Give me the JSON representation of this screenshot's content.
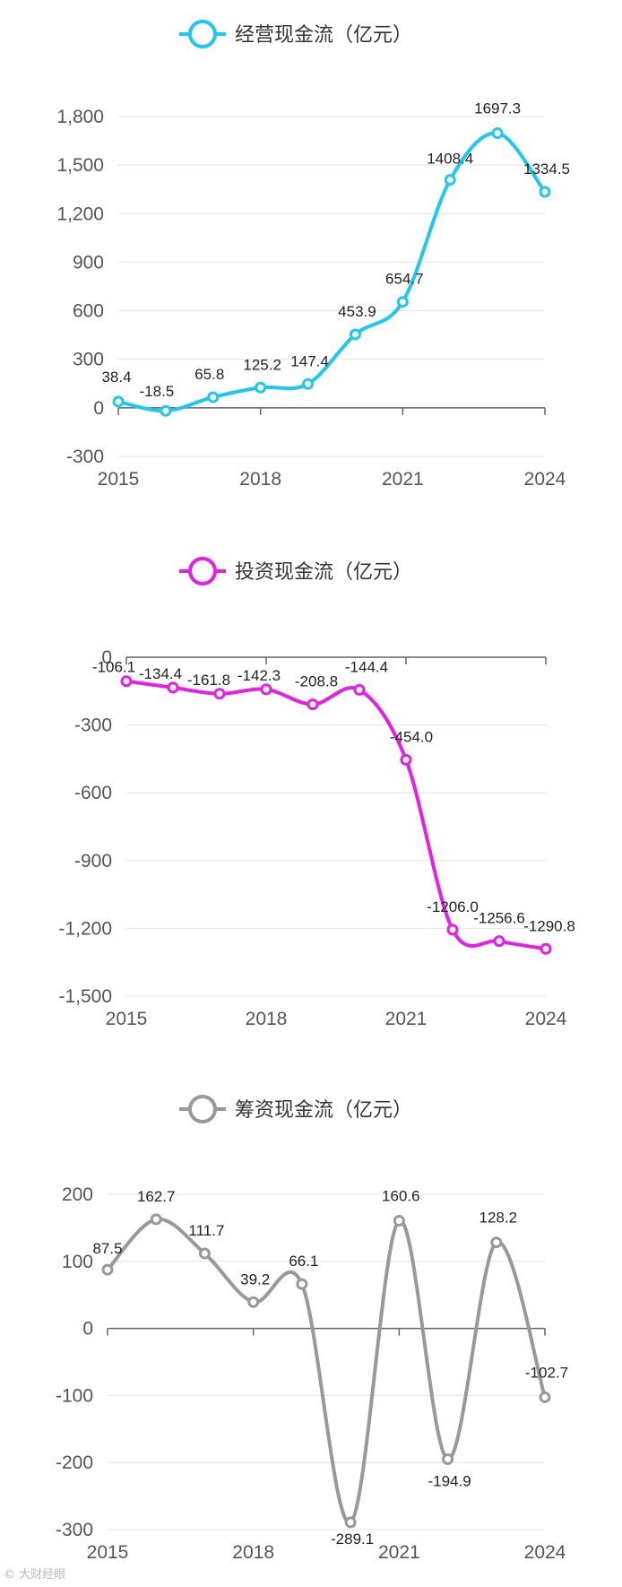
{
  "chart_data": [
    {
      "type": "line",
      "legend": "经营现金流（亿元）",
      "color": "#1ec8f0",
      "x": [
        "2015",
        "2016",
        "2017",
        "2018",
        "2019",
        "2020",
        "2021",
        "2022",
        "2023",
        "2024"
      ],
      "xtick_labels": [
        "2015",
        "2018",
        "2021",
        "2024"
      ],
      "values": [
        38.4,
        -18.5,
        65.8,
        125.2,
        147.4,
        453.9,
        654.7,
        1408.4,
        1697.3,
        1334.5
      ],
      "value_labels": [
        "38.4",
        "-18.5",
        "65.8",
        "125.2",
        "147.4",
        "453.9",
        "654.7",
        "1408.4",
        "1697.3",
        "1334.5"
      ],
      "ylim": [
        -300,
        1800
      ],
      "yticks": [
        -300,
        0,
        300,
        600,
        900,
        1200,
        1500,
        1800
      ],
      "ytick_labels": [
        "-300",
        "0",
        "300",
        "600",
        "900",
        "1,200",
        "1,500",
        "1,800"
      ],
      "zero_axis": 0,
      "grid": true,
      "legend_position": "top-center"
    },
    {
      "type": "line",
      "legend": "投资现金流（亿元）",
      "color": "#e61ee6",
      "x": [
        "2015",
        "2016",
        "2017",
        "2018",
        "2019",
        "2020",
        "2021",
        "2022",
        "2023",
        "2024"
      ],
      "xtick_labels": [
        "2015",
        "2018",
        "2021",
        "2024"
      ],
      "values": [
        -106.1,
        -134.4,
        -161.8,
        -142.3,
        -208.8,
        -144.4,
        -454.0,
        -1206.0,
        -1256.6,
        -1290.8
      ],
      "value_labels": [
        "-106.1",
        "-134.4",
        "-161.8",
        "-142.3",
        "-208.8",
        "-144.4",
        "-454.0",
        "-1206.0",
        "-1256.6",
        "-1290.8"
      ],
      "ylim": [
        -1500,
        0
      ],
      "yticks": [
        -1500,
        -1200,
        -900,
        -600,
        -300,
        0
      ],
      "ytick_labels": [
        "-1,500",
        "-1,200",
        "-900",
        "-600",
        "-300",
        "0"
      ],
      "zero_axis": 0,
      "grid": true,
      "legend_position": "top-center"
    },
    {
      "type": "line",
      "legend": "筹资现金流（亿元）",
      "color": "#999999",
      "x": [
        "2015",
        "2016",
        "2017",
        "2018",
        "2019",
        "2020",
        "2021",
        "2022",
        "2023",
        "2024"
      ],
      "xtick_labels": [
        "2015",
        "2018",
        "2021",
        "2024"
      ],
      "values": [
        87.5,
        162.7,
        111.7,
        39.2,
        66.1,
        -289.1,
        160.6,
        -194.9,
        128.2,
        -102.7
      ],
      "value_labels": [
        "87.5",
        "162.7",
        "111.7",
        "39.2",
        "66.1",
        "-289.1",
        "160.6",
        "-194.9",
        "128.2",
        "-102.7"
      ],
      "ylim": [
        -300,
        200
      ],
      "yticks": [
        -300,
        -200,
        -100,
        0,
        100,
        200
      ],
      "ytick_labels": [
        "-300",
        "-200",
        "-100",
        "0",
        "100",
        "200"
      ],
      "zero_axis": 0,
      "grid": true,
      "legend_position": "top-center"
    }
  ],
  "watermark": "© 大财经眼"
}
